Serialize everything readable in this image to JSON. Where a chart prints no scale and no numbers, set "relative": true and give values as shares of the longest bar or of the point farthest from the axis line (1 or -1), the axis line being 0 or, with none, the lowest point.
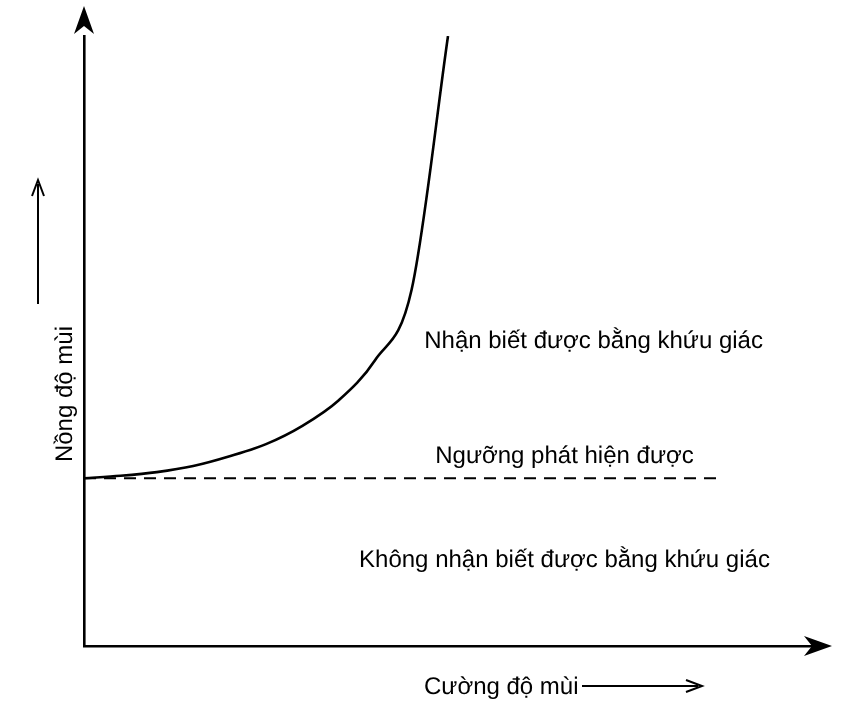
{
  "chart_data": {
    "type": "line",
    "relative": true,
    "xlabel": "Cường độ mùi",
    "ylabel": "Nồng độ mùi",
    "categories": [
      null,
      null,
      null,
      null,
      null,
      null,
      null,
      null,
      null,
      null,
      null,
      null,
      null,
      null,
      null,
      null,
      null,
      null,
      null,
      null,
      null
    ],
    "series": [
      {
        "color": "#000000",
        "values": [
          0.275,
          0.279,
          0.285,
          0.295,
          0.311,
          0.331,
          0.361,
          0.403,
          0.469,
          0.584,
          1,
          null,
          null,
          null,
          null,
          null,
          null,
          null,
          null,
          null,
          null
        ]
      }
    ],
    "ref_lines": [
      {
        "axis": "y",
        "value": 0.275,
        "label": "Ngưỡng phát hiện được",
        "color": "#000000",
        "line_style": "dashed"
      }
    ],
    "annotations": [
      "Nhận biết được bằng khứu giác",
      "Không nhận biết được bằng khứu giác"
    ],
    "marker": "none",
    "line_style": "solid",
    "grid": false,
    "legend": false
  }
}
